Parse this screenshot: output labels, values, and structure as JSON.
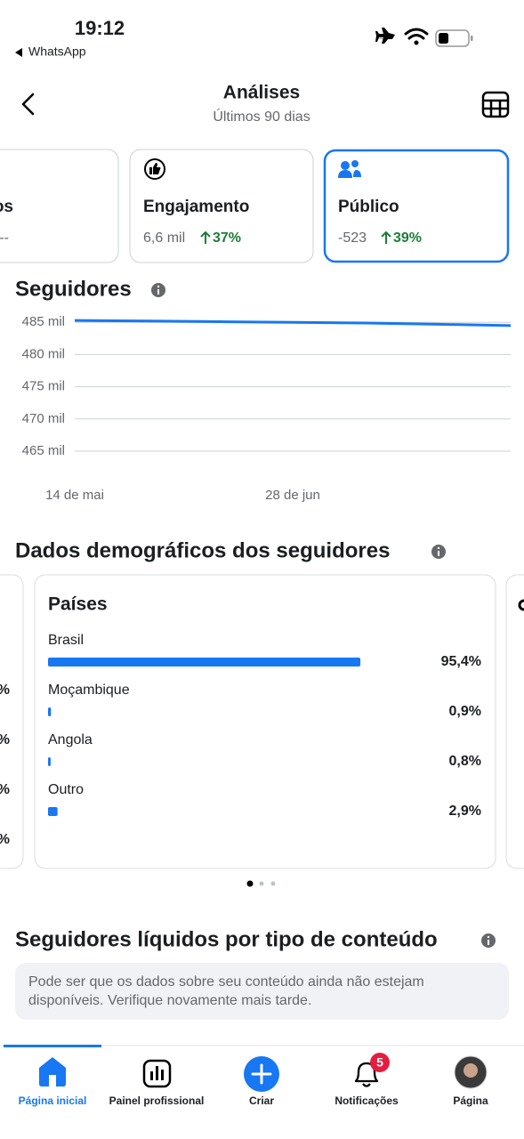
{
  "status_bar": {
    "time": "19:12",
    "back_app": "WhatsApp"
  },
  "header": {
    "title": "Análises",
    "subtitle": "Últimos 90 dias"
  },
  "cards": [
    {
      "title": "os",
      "value": "--"
    },
    {
      "title": "Engajamento",
      "value": "6,6 mil",
      "change": "37%"
    },
    {
      "title": "Público",
      "value": "-523",
      "change": "39%"
    }
  ],
  "demographics": {
    "title": "Dados demográficos dos seguidores",
    "left_card_fragments": [
      "%",
      "%",
      "%",
      "%"
    ]
  },
  "content_section": {
    "title": "Seguidores líquidos por tipo de conteúdo",
    "notice_lines": [
      "Pode ser que os dados sobre seu conteúdo ainda não estejam",
      "disponíveis. Verifique novamente mais tarde."
    ]
  },
  "nav": {
    "tabs": [
      "Página inicial",
      "Painel profissional",
      "Criar",
      "Notificações",
      "Página"
    ],
    "badge": "5"
  },
  "chart_data": [
    {
      "type": "line",
      "title": "Seguidores",
      "categories": [
        "14 de mai",
        null,
        null,
        "28 de jun",
        null,
        null,
        null
      ],
      "values": [
        485300,
        485200,
        485100,
        485000,
        484900,
        484700,
        484500
      ],
      "color": "#1877f2",
      "ylim": [
        465000,
        486000
      ],
      "yticks": [
        {
          "value": 465000,
          "label": "465 mil"
        },
        {
          "value": 470000,
          "label": "470 mil"
        },
        {
          "value": 475000,
          "label": "475 mil"
        },
        {
          "value": 480000,
          "label": "480 mil"
        },
        {
          "value": 485000,
          "label": "485 mil"
        }
      ],
      "grid": true
    },
    {
      "type": "hbar",
      "title": "Países",
      "categories": [
        "Brasil",
        "Moçambique",
        "Angola",
        "Outro"
      ],
      "values": [
        95.4,
        0.9,
        0.8,
        2.9
      ],
      "value_labels": [
        "95,4%",
        "0,9%",
        "0,8%",
        "2,9%"
      ],
      "color": "#1877f2",
      "xlim": [
        0,
        100
      ]
    }
  ]
}
